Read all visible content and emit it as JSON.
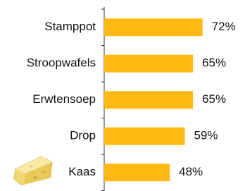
{
  "chart_data": {
    "type": "bar",
    "orientation": "horizontal",
    "categories": [
      "Stamppot",
      "Stroopwafels",
      "Erwtensoep",
      "Drop",
      "Kaas"
    ],
    "values": [
      72,
      65,
      65,
      59,
      48
    ],
    "value_labels": [
      "72%",
      "65%",
      "65%",
      "59%",
      "48%"
    ],
    "color": "#fdb813"
  }
}
